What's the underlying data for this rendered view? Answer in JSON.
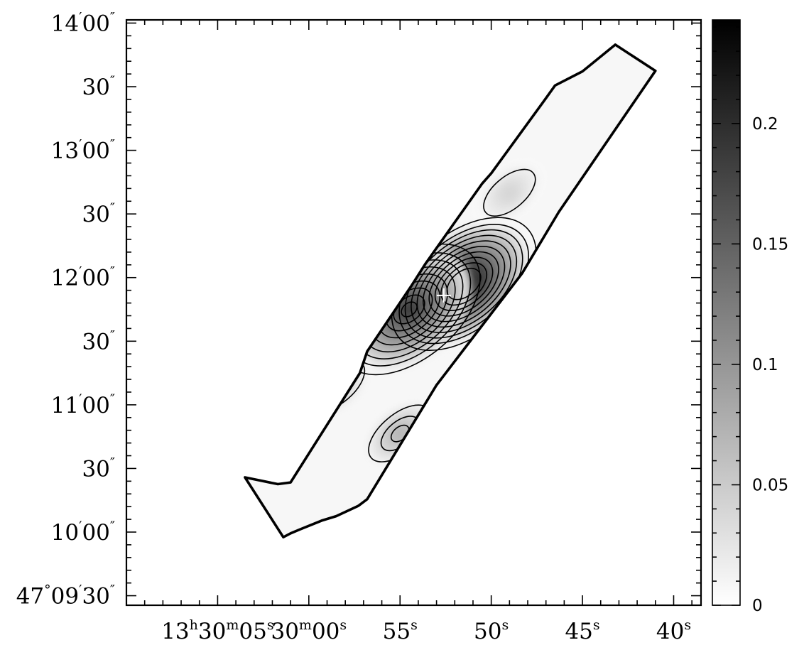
{
  "chart_data": {
    "type": "heatmap",
    "title": "",
    "xlabel": "",
    "ylabel": "",
    "x_axis": {
      "coordinate": "right ascension",
      "ticks": [
        {
          "sec": 65,
          "pre": "13",
          "pre_u": "h",
          "mid": "30",
          "mid_u": "m",
          "sec_txt": "05",
          "sec_u": "s"
        },
        {
          "sec": 60,
          "pre": "",
          "pre_u": "",
          "mid": "30",
          "mid_u": "m",
          "sec_txt": "00",
          "sec_u": "s"
        },
        {
          "sec": 55,
          "pre": "",
          "pre_u": "",
          "mid": "",
          "mid_u": "",
          "sec_txt": "55",
          "sec_u": "s"
        },
        {
          "sec": 50,
          "pre": "",
          "pre_u": "",
          "mid": "",
          "mid_u": "",
          "sec_txt": "50",
          "sec_u": "s"
        },
        {
          "sec": 45,
          "pre": "",
          "pre_u": "",
          "mid": "",
          "mid_u": "",
          "sec_txt": "45",
          "sec_u": "s"
        },
        {
          "sec": 40,
          "pre": "",
          "pre_u": "",
          "mid": "",
          "mid_u": "",
          "sec_txt": "40",
          "sec_u": "s"
        }
      ],
      "range_sec": [
        70.0,
        38.5
      ],
      "minor_step_sec": 1
    },
    "y_axis": {
      "coordinate": "declination",
      "ticks": [
        {
          "arcsec": 570,
          "deg": "47",
          "deg_u": "°",
          "amin": "09",
          "amin_u": "′",
          "asec": "30",
          "asec_u": "″"
        },
        {
          "arcsec": 600,
          "deg": "",
          "deg_u": "",
          "amin": "10",
          "amin_u": "′",
          "asec": "00",
          "asec_u": "″"
        },
        {
          "arcsec": 630,
          "deg": "",
          "deg_u": "",
          "amin": "",
          "amin_u": "",
          "asec": "30",
          "asec_u": "″"
        },
        {
          "arcsec": 660,
          "deg": "",
          "deg_u": "",
          "amin": "11",
          "amin_u": "′",
          "asec": "00",
          "asec_u": "″"
        },
        {
          "arcsec": 690,
          "deg": "",
          "deg_u": "",
          "amin": "",
          "amin_u": "",
          "asec": "30",
          "asec_u": "″"
        },
        {
          "arcsec": 720,
          "deg": "",
          "deg_u": "",
          "amin": "12",
          "amin_u": "′",
          "asec": "00",
          "asec_u": "″"
        },
        {
          "arcsec": 750,
          "deg": "",
          "deg_u": "",
          "amin": "",
          "amin_u": "",
          "asec": "30",
          "asec_u": "″"
        },
        {
          "arcsec": 780,
          "deg": "",
          "deg_u": "",
          "amin": "13",
          "amin_u": "′",
          "asec": "00",
          "asec_u": "″"
        },
        {
          "arcsec": 810,
          "deg": "",
          "deg_u": "",
          "amin": "",
          "amin_u": "",
          "asec": "30",
          "asec_u": "″"
        },
        {
          "arcsec": 840,
          "deg": "",
          "deg_u": "",
          "amin": "14",
          "amin_u": "′",
          "asec": "00",
          "asec_u": "″"
        }
      ],
      "range_arcsec": [
        565.5,
        841.5
      ],
      "minor_step_arcsec": 6
    },
    "colorbar": {
      "range": [
        0,
        0.243
      ],
      "ticks": [
        0,
        0.05,
        0.1,
        0.15,
        0.2
      ],
      "tick_labels": [
        "0",
        "0.05",
        "0.1",
        "0.15",
        "0.2"
      ],
      "colormap": "white-to-black grayscale"
    },
    "strip_outline": {
      "description": "slit-mapped region, approximate corner coordinates (RA seconds after 13h29m, Dec arcsec after 47°)",
      "ra_sec": [
        63.5,
        61.4,
        61.0,
        60.5,
        59.3,
        58.5,
        57.3,
        56.8,
        53.0,
        48.3,
        46.3,
        41.0,
        43.2,
        45.0,
        46.5,
        47.0,
        50.0,
        50.5,
        53.6,
        54.4,
        56.8,
        57.2,
        61.0,
        61.7
      ],
      "dec_arcsec": [
        625.8,
        597.6,
        599.4,
        601.2,
        605.4,
        607.5,
        612.3,
        615.5,
        669.3,
        722.1,
        750.9,
        817.5,
        829.8,
        817.2,
        810.6,
        804.6,
        769.2,
        764.3,
        726.6,
        715.8,
        685.2,
        675.0,
        623.4,
        622.6
      ]
    },
    "peak_marker": {
      "symbol": "+",
      "color": "#ffffff",
      "ra_sec": 52.6,
      "dec_arcsec": 711.6
    },
    "contours": {
      "description": "approximate contour level values (same units as colorbar)",
      "levels": [
        0.015,
        0.04,
        0.06,
        0.08,
        0.1,
        0.12,
        0.14,
        0.16,
        0.18,
        0.2
      ]
    },
    "emission_peaks": [
      {
        "ra_sec": 51.5,
        "dec_arcsec": 717.0,
        "value": 0.243
      },
      {
        "ra_sec": 54.5,
        "dec_arcsec": 705.0,
        "value": 0.19
      },
      {
        "ra_sec": 55.0,
        "dec_arcsec": 646.5,
        "value": 0.07
      },
      {
        "ra_sec": 58.5,
        "dec_arcsec": 669.0,
        "value": 0.05
      },
      {
        "ra_sec": 49.0,
        "dec_arcsec": 760.0,
        "value": 0.04
      }
    ]
  }
}
